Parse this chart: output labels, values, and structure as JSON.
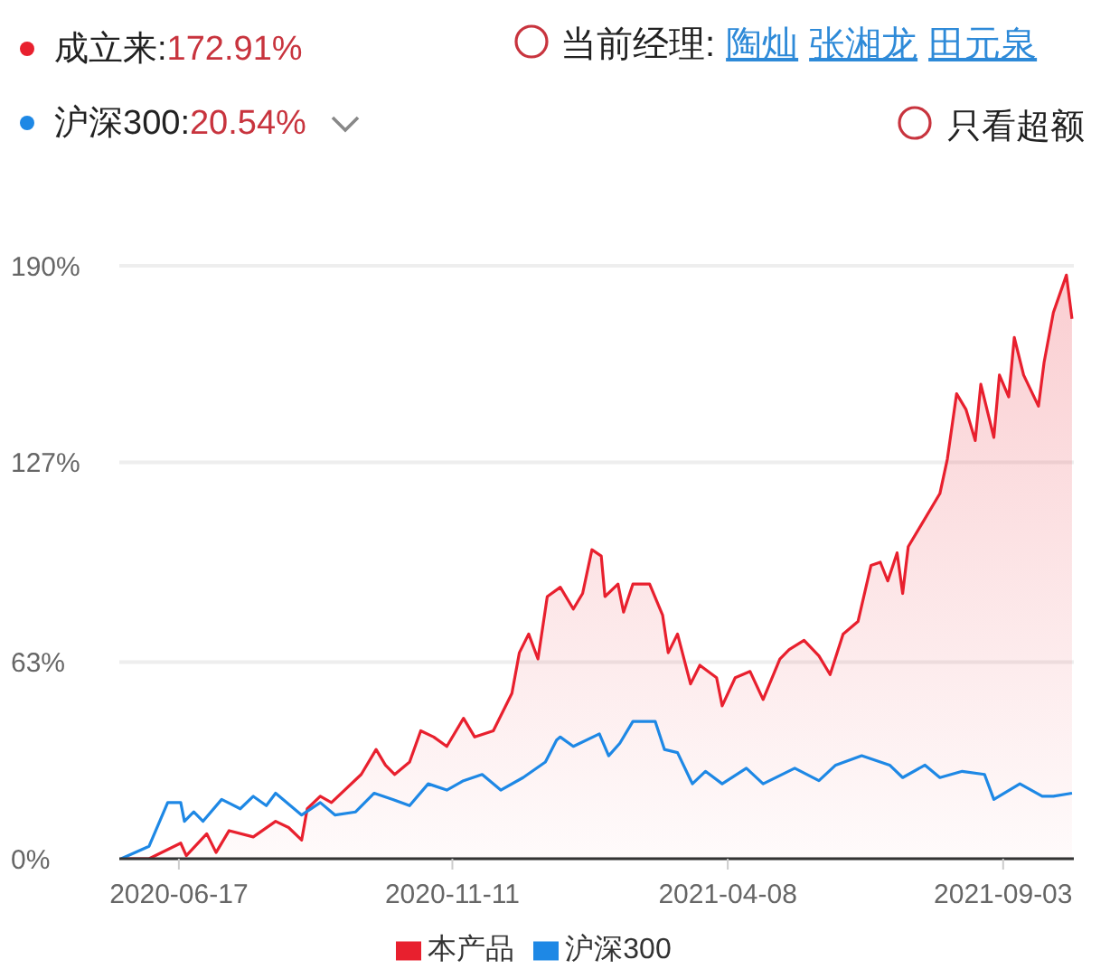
{
  "chart_data": {
    "type": "line",
    "annotations": [
      "成立来:",
      "172.91%",
      "沪深300:",
      "20.54%",
      "当前经理:",
      "陶灿",
      "张湘龙",
      "田元泉",
      "只看超额"
    ],
    "xlim": [
      "2020-05-16",
      "2021-10-11"
    ],
    "xticks": [
      "2020-06-17",
      "2020-11-11",
      "2021-04-08",
      "2021-09-03"
    ],
    "ylim": [
      0,
      190
    ],
    "yticks": [
      {
        "value": 0,
        "label": "0%"
      },
      {
        "value": 63,
        "label": "63%"
      },
      {
        "value": 127,
        "label": "127%"
      },
      {
        "value": 190,
        "label": "190%"
      }
    ],
    "grid": "y",
    "legend": "bottom",
    "marker": "none",
    "line_style": "solid",
    "series": [
      {
        "name": "本产品",
        "type": "area",
        "color": "#e8202e",
        "x": [
          "2020-05-17",
          "2020-06-01",
          "2020-06-18",
          "2020-06-21",
          "2020-07-02",
          "2020-07-07",
          "2020-07-14",
          "2020-07-27",
          "2020-08-08",
          "2020-08-15",
          "2020-08-22",
          "2020-08-25",
          "2020-09-01",
          "2020-09-07",
          "2020-09-23",
          "2020-10-01",
          "2020-10-06",
          "2020-10-11",
          "2020-10-19",
          "2020-10-25",
          "2020-11-01",
          "2020-11-08",
          "2020-11-17",
          "2020-11-23",
          "2020-12-03",
          "2020-12-13",
          "2020-12-17",
          "2020-12-22",
          "2020-12-27",
          "2021-01-01",
          "2021-01-08",
          "2021-01-15",
          "2021-01-20",
          "2021-01-25",
          "2021-01-30",
          "2021-02-01",
          "2021-02-08",
          "2021-02-11",
          "2021-02-16",
          "2021-02-25",
          "2021-03-04",
          "2021-03-07",
          "2021-03-12",
          "2021-03-19",
          "2021-03-24",
          "2021-04-02",
          "2021-04-05",
          "2021-04-12",
          "2021-04-20",
          "2021-04-27",
          "2021-05-06",
          "2021-05-11",
          "2021-05-19",
          "2021-05-27",
          "2021-06-02",
          "2021-06-09",
          "2021-06-17",
          "2021-06-24",
          "2021-06-29",
          "2021-07-03",
          "2021-07-08",
          "2021-07-11",
          "2021-07-14",
          "2021-07-21",
          "2021-07-31",
          "2021-08-04",
          "2021-08-09",
          "2021-08-14",
          "2021-08-19",
          "2021-08-22",
          "2021-08-29",
          "2021-09-01",
          "2021-09-06",
          "2021-09-09",
          "2021-09-14",
          "2021-09-22",
          "2021-09-25",
          "2021-09-30",
          "2021-10-07",
          "2021-10-10"
        ],
        "values": [
          0,
          0,
          5,
          1,
          8,
          2,
          9,
          7,
          12,
          10,
          6,
          16,
          20,
          18,
          27,
          35,
          30,
          27,
          31,
          41,
          39,
          36,
          45,
          39,
          41,
          53,
          66,
          72,
          64,
          84,
          87,
          80,
          85,
          99,
          97,
          84,
          88,
          79,
          88,
          88,
          78,
          66,
          72,
          56,
          62,
          58,
          49,
          58,
          60,
          51,
          64,
          67,
          70,
          65,
          59,
          72,
          76,
          94,
          95,
          89,
          98,
          85,
          100,
          107,
          117,
          128,
          149,
          144,
          134,
          152,
          135,
          155,
          148,
          167,
          155,
          145,
          159,
          175,
          187,
          173
        ]
      },
      {
        "name": "沪深300",
        "color": "#1e88e5",
        "x": [
          "2020-05-17",
          "2020-06-01",
          "2020-06-11",
          "2020-06-18",
          "2020-06-20",
          "2020-06-25",
          "2020-06-30",
          "2020-07-10",
          "2020-07-20",
          "2020-07-27",
          "2020-08-03",
          "2020-08-08",
          "2020-08-22",
          "2020-09-01",
          "2020-09-09",
          "2020-09-20",
          "2020-09-30",
          "2020-10-10",
          "2020-10-19",
          "2020-10-29",
          "2020-11-08",
          "2020-11-17",
          "2020-11-27",
          "2020-12-07",
          "2020-12-19",
          "2020-12-31",
          "2021-01-06",
          "2021-01-08",
          "2021-01-15",
          "2021-01-29",
          "2021-02-03",
          "2021-02-09",
          "2021-02-16",
          "2021-02-28",
          "2021-03-05",
          "2021-03-12",
          "2021-03-20",
          "2021-03-27",
          "2021-04-05",
          "2021-04-18",
          "2021-04-27",
          "2021-05-14",
          "2021-05-27",
          "2021-06-05",
          "2021-06-19",
          "2021-07-04",
          "2021-07-11",
          "2021-07-23",
          "2021-07-31",
          "2021-08-12",
          "2021-08-24",
          "2021-08-29",
          "2021-09-12",
          "2021-09-24",
          "2021-09-30",
          "2021-10-10"
        ],
        "values": [
          0,
          4,
          18,
          18,
          12,
          15,
          12,
          19,
          16,
          20,
          17,
          21,
          14,
          18,
          14,
          15,
          21,
          19,
          17,
          24,
          22,
          25,
          27,
          22,
          26,
          31,
          38,
          39,
          36,
          40,
          33,
          37,
          44,
          44,
          35,
          34,
          24,
          28,
          24,
          29,
          24,
          29,
          25,
          30,
          33,
          30,
          26,
          30,
          26,
          28,
          27,
          19,
          24,
          20,
          20,
          21
        ]
      }
    ]
  }
}
